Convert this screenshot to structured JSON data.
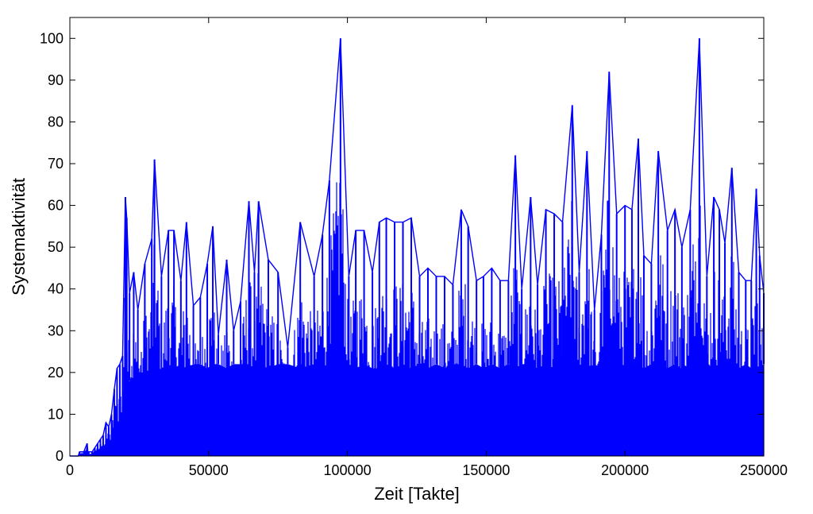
{
  "chart_data": {
    "type": "line",
    "title": "",
    "xlabel": "Zeit [Takte]",
    "ylabel": "Systemaktivität",
    "xlim": [
      0,
      250000
    ],
    "ylim": [
      0,
      105
    ],
    "x_ticks": [
      0,
      50000,
      100000,
      150000,
      200000,
      250000
    ],
    "x_tick_labels": [
      "0",
      "50000",
      "100000",
      "150000",
      "200000",
      "250000"
    ],
    "y_ticks": [
      0,
      10,
      20,
      30,
      40,
      50,
      60,
      70,
      80,
      90,
      100
    ],
    "y_tick_labels": [
      "0",
      "10",
      "20",
      "30",
      "40",
      "50",
      "60",
      "70",
      "80",
      "90",
      "100"
    ],
    "grid": false,
    "line_color": "#0000ff",
    "series": [
      {
        "x": [
          0,
          3000,
          3500,
          5000,
          6200,
          6500,
          6800,
          8000,
          9000,
          10000,
          11000,
          12000,
          13000,
          14000,
          15000,
          16000,
          17000,
          18000,
          19000,
          20000,
          20500,
          21500,
          23000,
          24500,
          27000,
          29500,
          30500,
          33000,
          35500,
          37500,
          40000,
          42000,
          44500,
          47000,
          49500,
          51500,
          53500,
          56500,
          59000,
          61500,
          64500,
          66500,
          68000,
          71500,
          75000,
          78500,
          83000,
          88000,
          91000,
          93500,
          97500,
          100500,
          103000,
          106000,
          109000,
          111500,
          114000,
          117000,
          120000,
          123000,
          126000,
          129000,
          132000,
          135000,
          138000,
          141000,
          143500,
          146500,
          149000,
          152000,
          155000,
          158000,
          160500,
          162800,
          166000,
          168500,
          171500,
          174500,
          177500,
          181000,
          183500,
          186300,
          189000,
          191500,
          194300,
          197000,
          200000,
          202500,
          204800,
          206800,
          209500,
          212000,
          215300,
          218000,
          220500,
          223500,
          226800,
          229500,
          232000,
          234000,
          236000,
          238500,
          241000,
          243500,
          245500,
          247300,
          248500,
          250000
        ],
        "y": [
          0,
          0,
          1,
          1,
          3,
          1,
          1,
          1,
          2,
          3,
          4,
          5,
          8,
          7,
          10,
          16,
          21,
          22,
          24,
          62,
          57,
          39,
          44,
          35,
          46,
          52,
          71,
          43,
          54,
          54,
          42,
          56,
          36,
          38,
          46,
          55,
          29,
          47,
          30,
          37,
          61,
          44,
          61,
          47,
          44,
          26,
          56,
          43,
          53,
          66,
          100,
          43,
          54,
          54,
          44,
          56,
          57,
          56,
          56,
          57,
          43,
          45,
          43,
          43,
          41,
          59,
          55,
          42,
          43,
          45,
          42,
          42,
          72,
          40,
          62,
          41,
          59,
          58,
          56,
          84,
          44,
          73,
          35,
          53,
          92,
          58,
          60,
          59,
          76,
          48,
          46,
          73,
          54,
          59,
          50,
          59,
          100,
          43,
          62,
          59,
          51,
          69,
          44,
          42,
          42,
          64,
          48,
          39
        ],
        "lower_y": [
          0,
          0,
          0,
          0,
          0,
          0,
          0,
          0,
          0,
          0,
          0,
          0,
          0,
          0,
          0,
          0,
          0,
          0,
          8,
          13,
          16,
          18,
          19,
          20,
          20,
          21,
          20,
          21,
          22,
          21,
          22,
          21,
          22,
          22,
          21,
          22,
          22,
          21,
          22,
          22,
          22,
          21,
          22,
          21,
          22,
          22,
          21,
          22,
          21,
          22,
          21,
          22,
          21,
          22,
          21,
          21,
          22,
          21,
          22,
          21,
          22,
          21,
          22,
          21,
          22,
          22,
          21,
          22,
          21,
          22,
          21,
          22,
          21,
          22,
          22,
          21,
          22,
          21,
          22,
          21,
          22,
          21,
          22,
          21,
          22,
          21,
          22,
          21,
          22,
          21,
          22,
          22,
          21,
          22,
          21,
          22,
          21,
          22,
          21,
          22,
          21,
          22,
          21,
          22,
          21,
          22,
          21,
          22
        ]
      }
    ]
  }
}
